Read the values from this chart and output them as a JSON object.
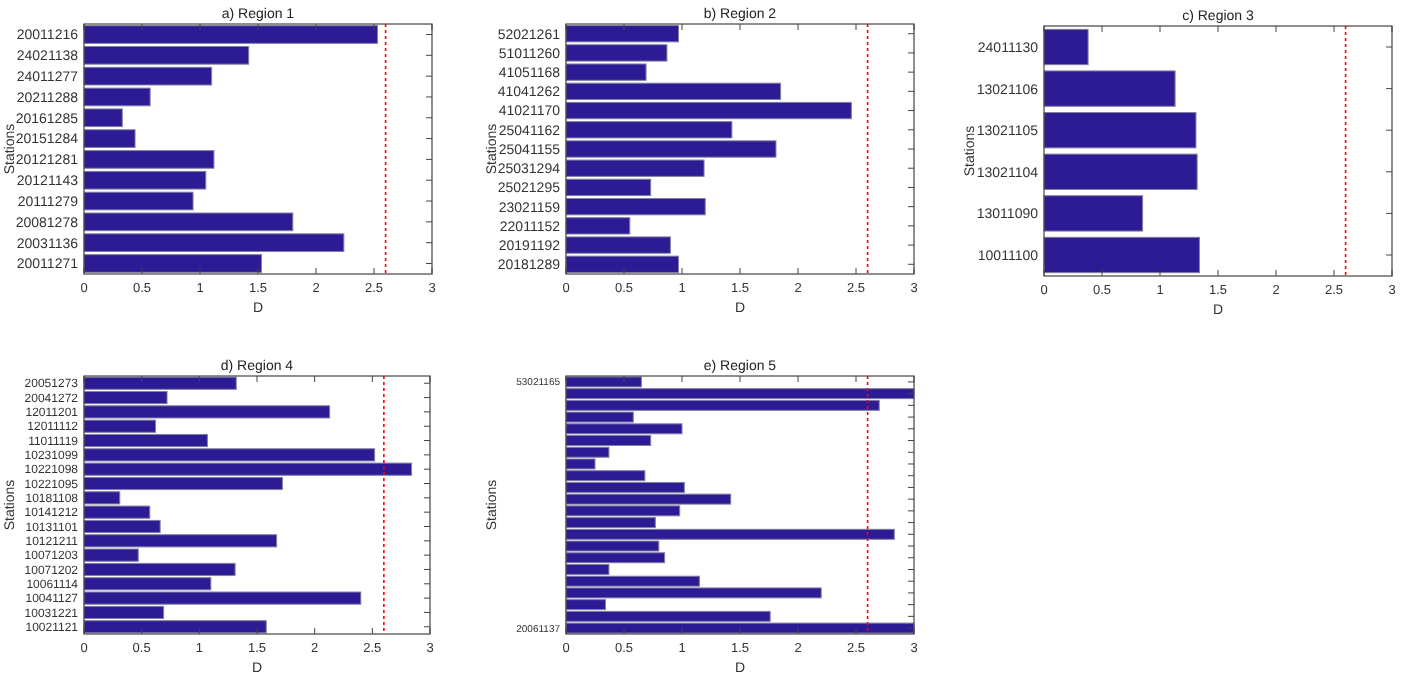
{
  "chart_data": [
    {
      "type": "bar",
      "orientation": "horizontal",
      "title": "a) Region 1",
      "xlabel": "D",
      "ylabel": "Stations",
      "categories": [
        "20011216",
        "24021138",
        "24011277",
        "20211288",
        "20161285",
        "20151284",
        "20121281",
        "20121143",
        "20111279",
        "20081278",
        "20031136",
        "20011271"
      ],
      "values": [
        2.53,
        1.42,
        1.1,
        0.57,
        0.33,
        0.44,
        1.12,
        1.05,
        0.94,
        1.8,
        2.24,
        1.53
      ],
      "color": "#2d1b96",
      "xlim": [
        0,
        3
      ],
      "xticks": [
        0,
        0.5,
        1,
        1.5,
        2,
        2.5,
        3
      ],
      "ref_lines": [
        {
          "axis": "x",
          "value": 2.6,
          "color": "#ff0000",
          "line_style": "dotted"
        }
      ]
    },
    {
      "type": "bar",
      "orientation": "horizontal",
      "title": "b) Region 2",
      "xlabel": "D",
      "ylabel": "Stations",
      "categories": [
        "52021261",
        "51011260",
        "41051168",
        "41041262",
        "41021170",
        "25041162",
        "25041155",
        "25031294",
        "25021295",
        "23021159",
        "22011152",
        "20191192",
        "20181289"
      ],
      "values": [
        0.97,
        0.87,
        0.69,
        1.85,
        2.46,
        1.43,
        1.81,
        1.19,
        0.73,
        1.2,
        0.55,
        0.9,
        0.97
      ],
      "color": "#2d1b96",
      "xlim": [
        0,
        3
      ],
      "xticks": [
        0,
        0.5,
        1,
        1.5,
        2,
        2.5,
        3
      ],
      "ref_lines": [
        {
          "axis": "x",
          "value": 2.6,
          "color": "#ff0000",
          "line_style": "dotted"
        }
      ]
    },
    {
      "type": "bar",
      "orientation": "horizontal",
      "title": "c) Region 3",
      "xlabel": "D",
      "ylabel": "Stations",
      "categories": [
        "24011130",
        "13021106",
        "13021105",
        "13021104",
        "13011090",
        "10011100"
      ],
      "values": [
        0.38,
        1.13,
        1.31,
        1.32,
        0.85,
        1.34
      ],
      "color": "#2d1b96",
      "xlim": [
        0,
        3
      ],
      "xticks": [
        0,
        0.5,
        1,
        1.5,
        2,
        2.5,
        3
      ],
      "ref_lines": [
        {
          "axis": "x",
          "value": 2.6,
          "color": "#ff0000",
          "line_style": "dotted"
        }
      ]
    },
    {
      "type": "bar",
      "orientation": "horizontal",
      "title": "d) Region 4",
      "xlabel": "D",
      "ylabel": "Stations",
      "categories": [
        "20051273",
        "20041272",
        "12011201",
        "12011112",
        "11011119",
        "10231099",
        "10221098",
        "10221095",
        "10181108",
        "10141212",
        "10131101",
        "10121211",
        "10071203",
        "10071202",
        "10061114",
        "10041127",
        "10031221",
        "10021121"
      ],
      "values": [
        1.32,
        0.72,
        2.13,
        0.62,
        1.07,
        2.52,
        2.84,
        1.72,
        0.31,
        0.57,
        0.66,
        1.67,
        0.47,
        1.31,
        1.1,
        2.4,
        0.69,
        1.58
      ],
      "color": "#2d1b96",
      "xlim": [
        0,
        3
      ],
      "xticks": [
        0,
        0.5,
        1,
        1.5,
        2,
        2.5,
        3
      ],
      "ref_lines": [
        {
          "axis": "x",
          "value": 2.6,
          "color": "#ff0000",
          "line_style": "dotted"
        }
      ]
    },
    {
      "type": "bar",
      "orientation": "horizontal",
      "title": "e) Region 5",
      "xlabel": "D",
      "ylabel": "Stations",
      "categories": [
        "53021165",
        null,
        null,
        null,
        null,
        null,
        null,
        null,
        null,
        null,
        null,
        null,
        null,
        null,
        null,
        null,
        null,
        null,
        null,
        null,
        null,
        "20061137"
      ],
      "values": [
        0.65,
        3,
        2.7,
        0.58,
        1,
        0.73,
        0.37,
        0.25,
        0.68,
        1.02,
        1.42,
        0.98,
        0.77,
        2.83,
        0.8,
        0.85,
        0.37,
        1.15,
        2.2,
        0.34,
        1.76,
        3
      ],
      "color": "#2d1b96",
      "xlim": [
        0,
        3
      ],
      "xticks": [
        0,
        0.5,
        1,
        1.5,
        2,
        2.5,
        3
      ],
      "ref_lines": [
        {
          "axis": "x",
          "value": 2.6,
          "color": "#ff0000",
          "line_style": "dotted"
        }
      ]
    }
  ]
}
